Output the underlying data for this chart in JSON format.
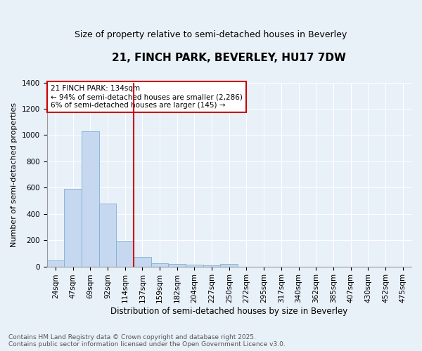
{
  "title_line1": "21, FINCH PARK, BEVERLEY, HU17 7DW",
  "title_line2": "Size of property relative to semi-detached houses in Beverley",
  "xlabel": "Distribution of semi-detached houses by size in Beverley",
  "ylabel": "Number of semi-detached properties",
  "categories": [
    "24sqm",
    "47sqm",
    "69sqm",
    "92sqm",
    "114sqm",
    "137sqm",
    "159sqm",
    "182sqm",
    "204sqm",
    "227sqm",
    "250sqm",
    "272sqm",
    "295sqm",
    "317sqm",
    "340sqm",
    "362sqm",
    "385sqm",
    "407sqm",
    "430sqm",
    "452sqm",
    "475sqm"
  ],
  "values": [
    45,
    590,
    1030,
    480,
    195,
    75,
    22,
    18,
    15,
    10,
    20,
    0,
    0,
    0,
    0,
    0,
    0,
    0,
    0,
    0,
    0
  ],
  "bar_color": "#c5d8f0",
  "bar_edge_color": "#7eb0d4",
  "vline_x": 4.5,
  "vline_color": "#cc0000",
  "annotation_title": "21 FINCH PARK: 134sqm",
  "annotation_line1": "← 94% of semi-detached houses are smaller (2,286)",
  "annotation_line2": "6% of semi-detached houses are larger (145) →",
  "annotation_box_color": "#ffffff",
  "annotation_box_edge_color": "#cc0000",
  "ylim": [
    0,
    1400
  ],
  "yticks": [
    0,
    200,
    400,
    600,
    800,
    1000,
    1200,
    1400
  ],
  "background_color": "#e8f0f8",
  "grid_color": "#ffffff",
  "footer_line1": "Contains HM Land Registry data © Crown copyright and database right 2025.",
  "footer_line2": "Contains public sector information licensed under the Open Government Licence v3.0.",
  "title_fontsize": 11,
  "subtitle_fontsize": 9,
  "tick_fontsize": 7.5,
  "ylabel_fontsize": 8,
  "xlabel_fontsize": 8.5,
  "footer_fontsize": 6.5,
  "annot_fontsize": 7.5
}
